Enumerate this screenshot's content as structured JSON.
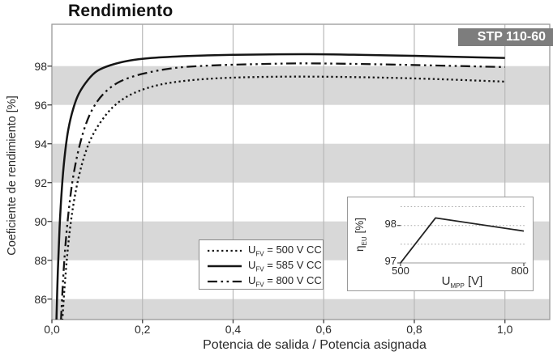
{
  "title": "Rendimiento",
  "badge": "STP 110-60",
  "colors": {
    "band": "#d8d8d8",
    "badge_bg": "#7d7d7d",
    "badge_text": "#ffffff",
    "grid": "#b9b9b9",
    "frame": "#999999",
    "tick": "#4a4a4a",
    "curve": "#151515"
  },
  "main_axes": {
    "x_label": "Potencia de salida / Potencia asignada",
    "y_label": "Coeficiente de rendimiento [%]",
    "x_ticks": [
      {
        "label": "0,0",
        "value": 0.0
      },
      {
        "label": "0,2",
        "value": 0.2
      },
      {
        "label": "0,4",
        "value": 0.4
      },
      {
        "label": "0,6",
        "value": 0.6
      },
      {
        "label": "0,8",
        "value": 0.8
      },
      {
        "label": "1,0",
        "value": 1.0
      }
    ],
    "y_ticks": [
      {
        "label": "86",
        "value": 86
      },
      {
        "label": "88",
        "value": 88
      },
      {
        "label": "90",
        "value": 90
      },
      {
        "label": "92",
        "value": 92
      },
      {
        "label": "94",
        "value": 94
      },
      {
        "label": "96",
        "value": 96
      },
      {
        "label": "98",
        "value": 98
      }
    ]
  },
  "legend": {
    "items": [
      {
        "marker": "dotted",
        "sym": "U",
        "sub": "FV",
        "text": " = 500 V CC"
      },
      {
        "marker": "solid",
        "sym": "U",
        "sub": "FV",
        "text": " = 585 V CC"
      },
      {
        "marker": "dashdotdot",
        "sym": "U",
        "sub": "FV",
        "text": " = 800 V CC"
      }
    ]
  },
  "inset": {
    "y_label_sym": "η",
    "y_label_sub": "EU",
    "y_label_unit": " [%]",
    "x_label_sym": "U",
    "x_label_sub": "MPP",
    "x_label_unit": " [V]",
    "y_ticks": [
      {
        "label": "97",
        "value": 97
      },
      {
        "label": "98",
        "value": 98
      }
    ],
    "x_ticks": [
      {
        "label": "500",
        "value": 500
      },
      {
        "label": "800",
        "value": 800
      }
    ],
    "gridlines": [
      97,
      97.5,
      98,
      98.5
    ]
  },
  "chart_data": [
    {
      "type": "line",
      "title": "Rendimiento",
      "xlabel": "Potencia de salida / Potencia asignada",
      "ylabel": "Coeficiente de rendimiento [%]",
      "xlim": [
        0,
        1.1
      ],
      "ylim": [
        85,
        100.15
      ],
      "x_ticks": [
        0,
        0.2,
        0.4,
        0.6,
        0.8,
        1.0
      ],
      "y_ticks": [
        86,
        88,
        90,
        92,
        94,
        96,
        98
      ],
      "gray_bands": [
        [
          84,
          86
        ],
        [
          88,
          90
        ],
        [
          92,
          94
        ],
        [
          96,
          98
        ]
      ],
      "legend_position": "bottom-center",
      "series": [
        {
          "name": "UFV = 500 V CC",
          "style": "dotted",
          "points": [
            [
              0.023,
              84.9
            ],
            [
              0.028,
              86.6
            ],
            [
              0.034,
              88.3
            ],
            [
              0.042,
              90.0
            ],
            [
              0.053,
              91.6
            ],
            [
              0.067,
              93.0
            ],
            [
              0.085,
              94.2
            ],
            [
              0.11,
              95.2
            ],
            [
              0.14,
              96.0
            ],
            [
              0.18,
              96.6
            ],
            [
              0.24,
              97.05
            ],
            [
              0.32,
              97.3
            ],
            [
              0.42,
              97.42
            ],
            [
              0.55,
              97.46
            ],
            [
              0.7,
              97.42
            ],
            [
              0.85,
              97.33
            ],
            [
              1.0,
              97.2
            ]
          ]
        },
        {
          "name": "UFV = 585 V CC",
          "style": "solid",
          "points": [
            [
              0.01,
              84.9
            ],
            [
              0.013,
              87.4
            ],
            [
              0.017,
              89.7
            ],
            [
              0.022,
              91.7
            ],
            [
              0.028,
              93.3
            ],
            [
              0.036,
              94.7
            ],
            [
              0.047,
              95.8
            ],
            [
              0.06,
              96.6
            ],
            [
              0.08,
              97.3
            ],
            [
              0.1,
              97.75
            ],
            [
              0.13,
              98.05
            ],
            [
              0.17,
              98.28
            ],
            [
              0.22,
              98.42
            ],
            [
              0.3,
              98.52
            ],
            [
              0.4,
              98.58
            ],
            [
              0.5,
              98.61
            ],
            [
              0.6,
              98.61
            ],
            [
              0.7,
              98.57
            ],
            [
              0.8,
              98.53
            ],
            [
              0.9,
              98.47
            ],
            [
              1.0,
              98.42
            ]
          ]
        },
        {
          "name": "UFV = 800 V CC",
          "style": "dashdotdot",
          "points": [
            [
              0.02,
              84.9
            ],
            [
              0.024,
              86.7
            ],
            [
              0.029,
              88.5
            ],
            [
              0.036,
              90.3
            ],
            [
              0.045,
              92.0
            ],
            [
              0.057,
              93.5
            ],
            [
              0.072,
              94.8
            ],
            [
              0.09,
              95.8
            ],
            [
              0.115,
              96.6
            ],
            [
              0.15,
              97.2
            ],
            [
              0.2,
              97.6
            ],
            [
              0.27,
              97.9
            ],
            [
              0.35,
              98.03
            ],
            [
              0.45,
              98.1
            ],
            [
              0.55,
              98.14
            ],
            [
              0.65,
              98.12
            ],
            [
              0.75,
              98.08
            ],
            [
              0.85,
              98.03
            ],
            [
              1.0,
              97.95
            ]
          ]
        }
      ]
    },
    {
      "type": "line",
      "title": "inset: efficiency vs MPP voltage",
      "xlabel": "UMPP [V]",
      "ylabel": "ηEU [%]",
      "xlim": [
        500,
        800
      ],
      "ylim": [
        96.9,
        98.6
      ],
      "x_ticks": [
        500,
        800
      ],
      "y_ticks": [
        97,
        98
      ],
      "gridlines_y": [
        97,
        97.5,
        98,
        98.5
      ],
      "series": [
        {
          "name": "ηEU",
          "style": "solid",
          "points": [
            [
              500,
              97.0
            ],
            [
              585,
              98.2
            ],
            [
              800,
              97.85
            ]
          ]
        }
      ]
    }
  ]
}
